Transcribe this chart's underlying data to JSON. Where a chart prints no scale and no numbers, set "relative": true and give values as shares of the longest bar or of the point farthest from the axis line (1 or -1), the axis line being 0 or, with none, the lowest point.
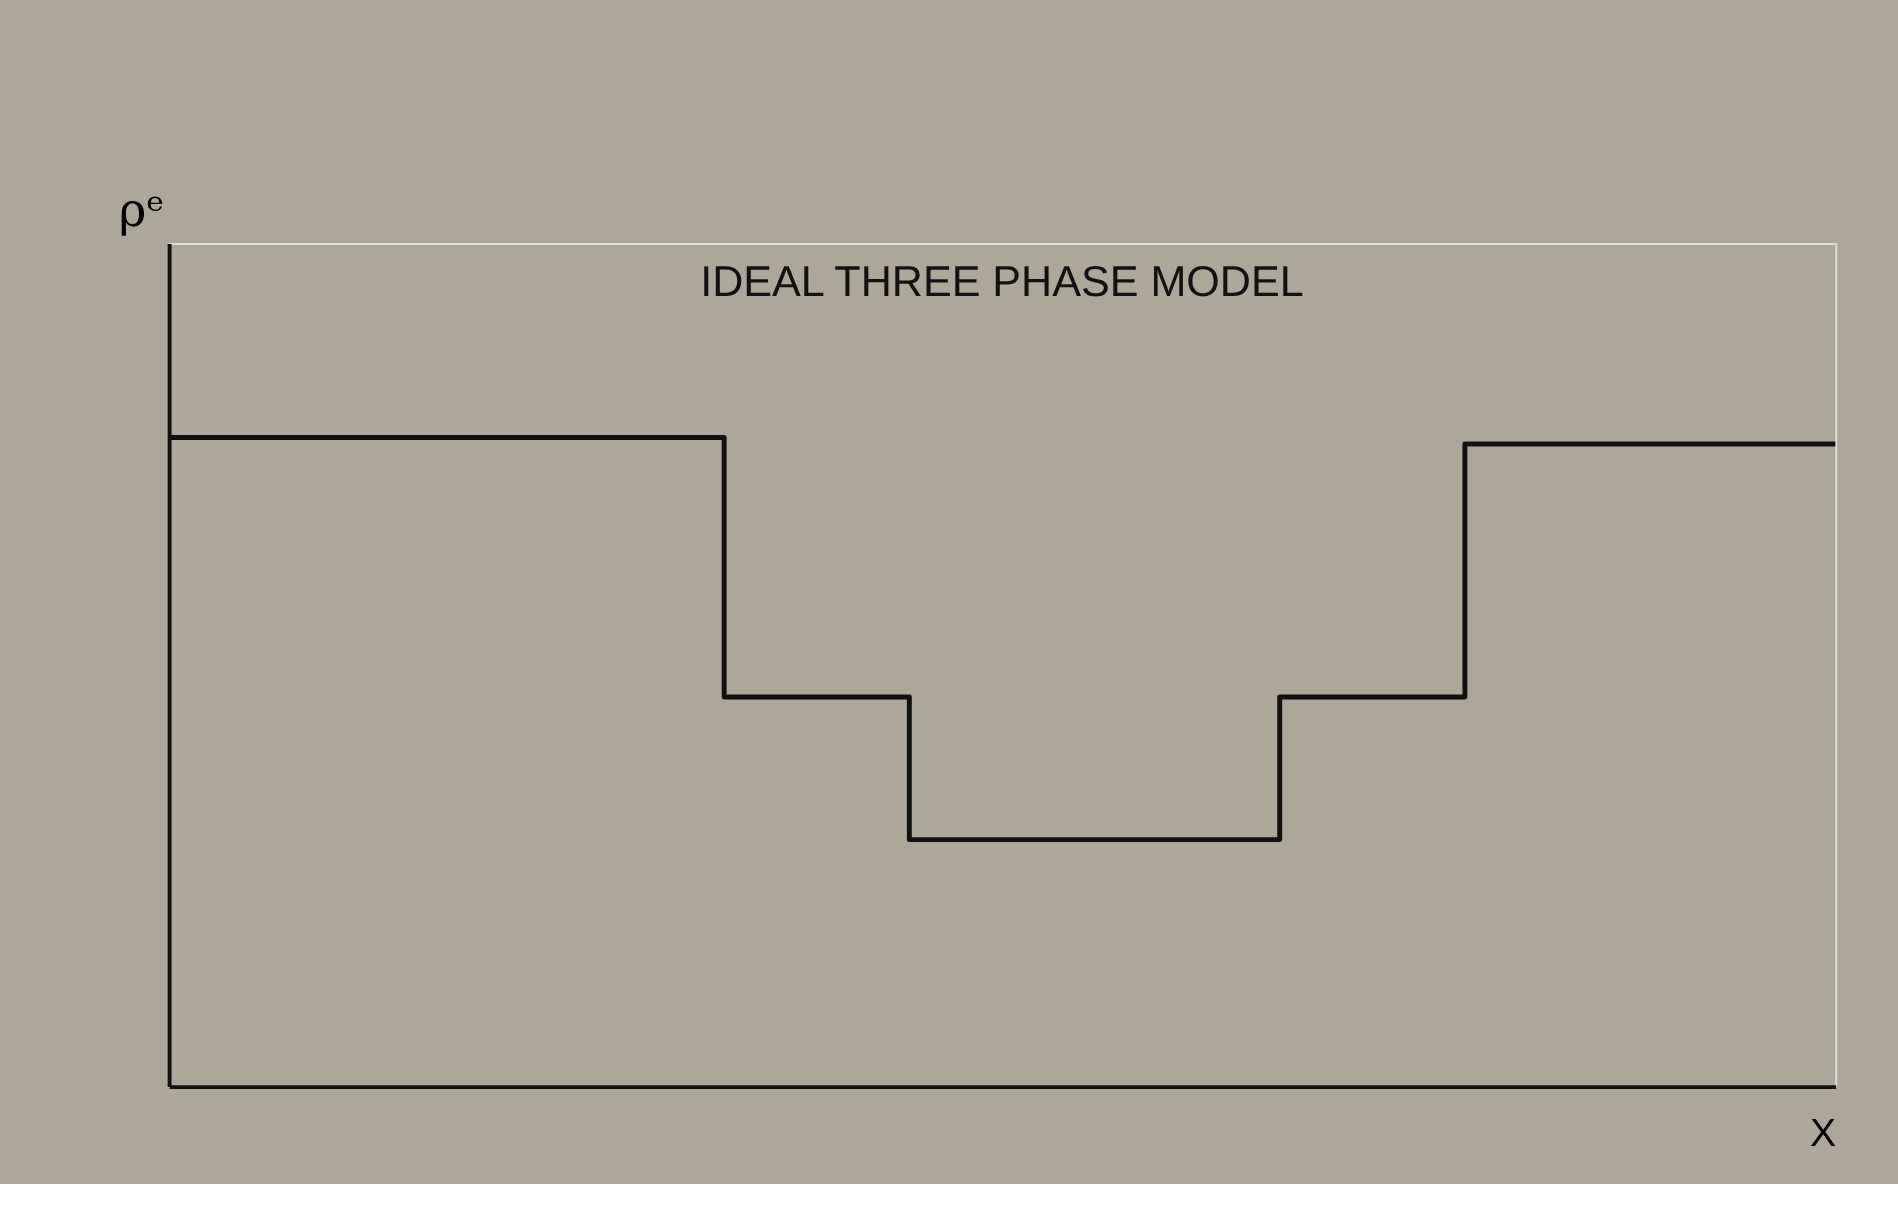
{
  "chart_data": {
    "type": "step",
    "title": "IDEAL  THREE  PHASE  MODEL",
    "xlabel": "X",
    "ylabel": "ρᵉ",
    "relative": true,
    "categories": [
      null,
      null,
      null,
      null,
      null,
      null,
      null,
      null,
      null,
      null
    ],
    "series": [
      {
        "color": "#111111",
        "values": [
          1,
          1,
          1,
          0.6,
          0.38,
          0.38,
          0.6,
          0.99,
          0.99,
          0.99
        ]
      }
    ],
    "grid": false,
    "legend": false,
    "marker": "none",
    "line_style": "solid"
  }
}
